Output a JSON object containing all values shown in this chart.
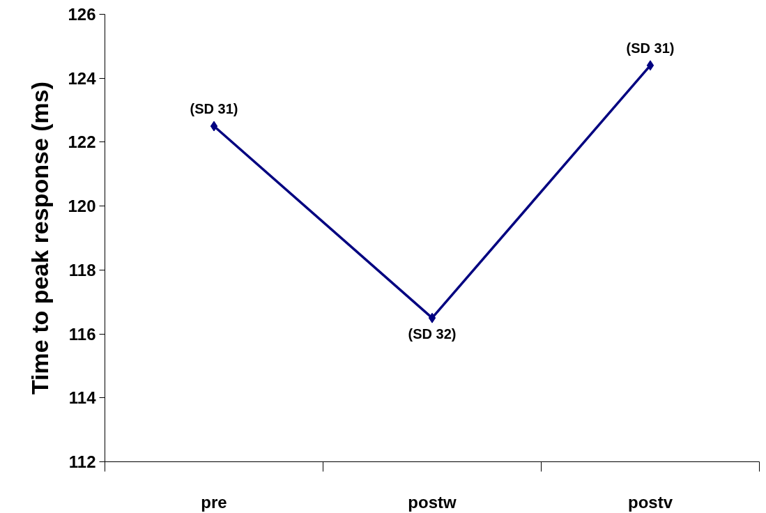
{
  "chart_data": {
    "type": "line",
    "ylabel": "Time to peak response (ms)",
    "categories": [
      "pre",
      "postw",
      "postv"
    ],
    "series": [
      {
        "color": "#000080",
        "values": [
          122.5,
          116.5,
          124.4
        ]
      }
    ],
    "ylim": [
      112,
      126
    ],
    "yticks": [
      112,
      114,
      116,
      118,
      120,
      122,
      124,
      126
    ],
    "grid": false,
    "marker": "diamond",
    "line_style": "solid",
    "annotations": [
      {
        "text": "(SD 31)",
        "x": "pre",
        "y": 122.5
      },
      {
        "text": "(SD 32)",
        "x": "postw",
        "y": 116.5
      },
      {
        "text": "(SD 31)",
        "x": "postv",
        "y": 124.4
      }
    ]
  }
}
